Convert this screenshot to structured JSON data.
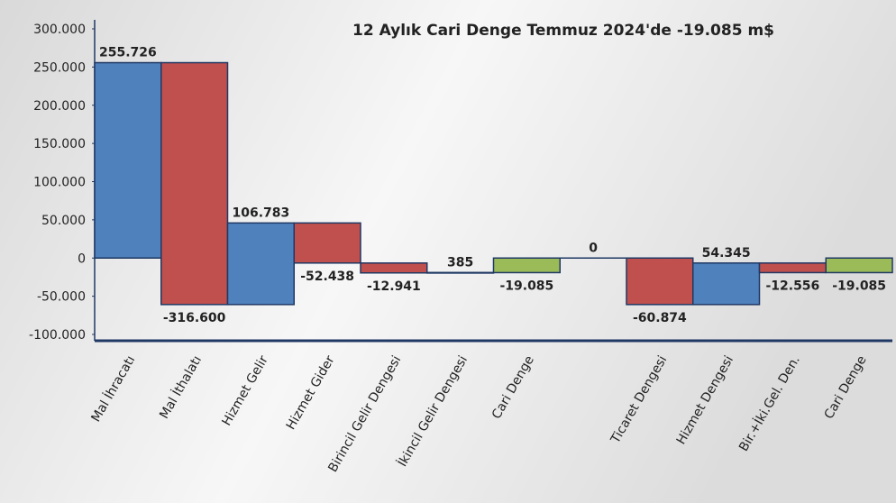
{
  "chart_data": {
    "type": "waterfall",
    "title": "12 Aylık Cari Denge Temmuz 2024'de -19.085 m$",
    "categories": [
      "Mal İhracatı",
      "Mal İthalatı",
      "Hizmet Gelir",
      "Hizmet Gider",
      "Birincil Gelir Dengesi",
      "İkincil Gelir Dengesi",
      "Cari Denge",
      null,
      "Ticaret Dengesi",
      "Hizmet Dengesi",
      "Bir.+İki.Gel. Den.",
      "Cari Denge"
    ],
    "values": [
      255726,
      -316600,
      106783,
      -52438,
      -12941,
      385,
      -19085,
      0,
      -60874,
      54345,
      -12556,
      -19085
    ],
    "value_labels": [
      "255.726",
      "-316.600",
      "106.783",
      "-52.438",
      "-12.941",
      "385",
      "-19.085",
      "0",
      "-60.874",
      "54.345",
      "-12.556",
      "-19.085"
    ],
    "measure": [
      "relative",
      "relative",
      "relative",
      "relative",
      "relative",
      "relative",
      "total",
      "absolute",
      "relative",
      "relative",
      "relative",
      "total"
    ],
    "colors": [
      "#4f81bd",
      "#c0504d",
      "#4f81bd",
      "#c0504d",
      "#c0504d",
      "#4f81bd",
      "#9bbb59",
      null,
      "#c0504d",
      "#4f81bd",
      "#c0504d",
      "#9bbb59"
    ],
    "ylim": [
      -100000,
      300000
    ],
    "yticks": [
      {
        "value": -100000,
        "label": "-100.000"
      },
      {
        "value": -50000,
        "label": "-50.000"
      },
      0,
      {
        "value": 50000,
        "label": "50.000"
      },
      {
        "value": 100000,
        "label": "100.000"
      },
      {
        "value": 150000,
        "label": "150.000"
      },
      {
        "value": 200000,
        "label": "200.000"
      },
      {
        "value": 250000,
        "label": "250.000"
      },
      {
        "value": 300000,
        "label": "300.000"
      }
    ]
  }
}
